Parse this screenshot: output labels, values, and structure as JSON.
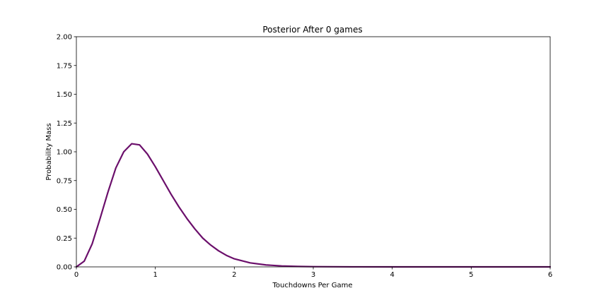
{
  "chart_data": {
    "type": "line",
    "title": "Posterior After 0 games",
    "xlabel": "Touchdowns Per Game",
    "ylabel": "Probability Mass",
    "xlim": [
      0,
      6
    ],
    "ylim": [
      0,
      2.0
    ],
    "x_ticks": [
      "0",
      "1",
      "2",
      "3",
      "4",
      "5",
      "6"
    ],
    "y_ticks": [
      "0.00",
      "0.25",
      "0.50",
      "0.75",
      "1.00",
      "1.25",
      "1.50",
      "1.75",
      "2.00"
    ],
    "grid": false,
    "legend": "none",
    "series": [
      {
        "color": "#6b0f6b",
        "x": [
          0,
          0.1,
          0.2,
          0.3,
          0.4,
          0.5,
          0.6,
          0.7,
          0.8,
          0.9,
          1.0,
          1.1,
          1.2,
          1.3,
          1.4,
          1.5,
          1.6,
          1.7,
          1.8,
          1.9,
          2.0,
          2.2,
          2.4,
          2.6,
          2.8,
          3.0,
          3.5,
          4.0,
          4.5,
          5.0,
          5.5,
          6.0
        ],
        "y": [
          0.0,
          0.05,
          0.2,
          0.42,
          0.65,
          0.86,
          1.0,
          1.07,
          1.06,
          0.98,
          0.87,
          0.75,
          0.63,
          0.52,
          0.42,
          0.33,
          0.25,
          0.19,
          0.14,
          0.1,
          0.07,
          0.035,
          0.017,
          0.008,
          0.004,
          0.002,
          0.0005,
          0.0001,
          0.0,
          0.0,
          0.0,
          0.0
        ]
      }
    ]
  }
}
